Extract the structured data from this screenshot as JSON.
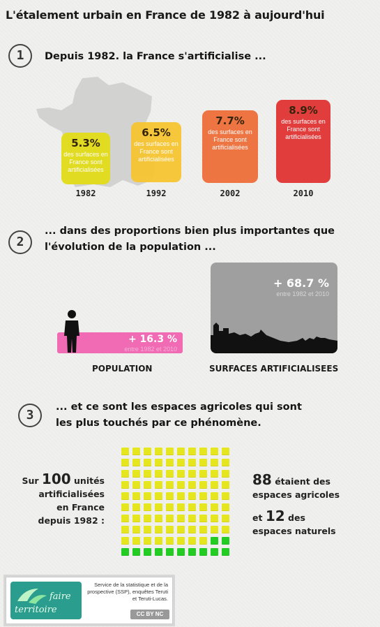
{
  "title": "L'étalement urbain en France de 1982 à aujourd'hui",
  "section1": {
    "number": "1",
    "heading": "Depuis 1982. la France s'artificialise ...",
    "cards": [
      {
        "pct": "5.3%",
        "desc": "des surfaces en France sont artificialisées",
        "year": "1982",
        "color": "#e2dc18"
      },
      {
        "pct": "6.5%",
        "desc": "des surfaces en France sont artificialisées",
        "year": "1992",
        "color": "#f7c531"
      },
      {
        "pct": "7.7%",
        "desc": "des surfaces en France sont artificialisées",
        "year": "2002",
        "color": "#ee6f3a"
      },
      {
        "pct": "8.9%",
        "desc": "des surfaces en France sont artificialisées",
        "year": "2010",
        "color": "#e23434"
      }
    ]
  },
  "section2": {
    "number": "2",
    "heading_line1": "... dans des proportions bien plus importantes que",
    "heading_line2": "l'évolution de la population ...",
    "population": {
      "value": "+ 16.3 %",
      "sub": "entre 1982 et 2010",
      "label": "POPULATION",
      "color": "#f06ab4"
    },
    "surfaces": {
      "value": "+ 68.7 %",
      "sub": "entre 1982 et 2010",
      "label": "SURFACES ARTIFICIALISEES",
      "color": "#9f9f9f"
    }
  },
  "section3": {
    "number": "3",
    "heading_line1": "... et ce sont les espaces agricoles qui sont",
    "heading_line2": "les plus touchés par ce phénomène.",
    "left": {
      "prefix": "Sur",
      "big": "100",
      "suffix": "unités",
      "line2": "artificialisées",
      "line3": "en France",
      "line4": "depuis 1982 :"
    },
    "right": {
      "big1": "88",
      "text1a": "étaient des",
      "text1b": "espaces agricoles",
      "conj": "et",
      "big2": "12",
      "text2a": "des",
      "text2b": "espaces naturels"
    },
    "agricultural_count": 88,
    "natural_count": 12
  },
  "footer": {
    "logo_line1": "faire",
    "logo_line2": "territoire",
    "credit": "Service de la statistique et de la prospective (SSP), enquêtes Teruti et Teruti-Lucas.",
    "license": "CC BY NC"
  }
}
